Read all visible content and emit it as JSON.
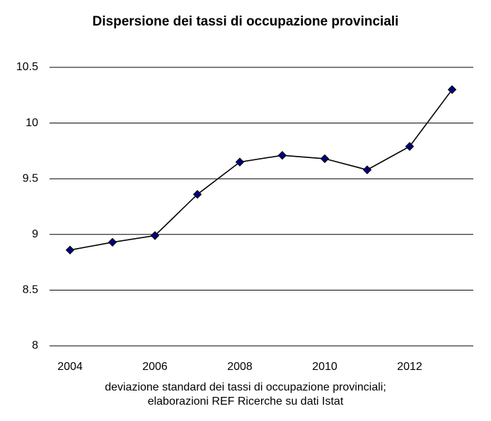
{
  "chart_data": {
    "type": "line",
    "title": "Dispersione dei tassi di occupazione provinciali",
    "xlabel_lines": [
      "deviazione standard dei tassi di occupazione provinciali;",
      "elaborazioni REF Ricerche su dati Istat"
    ],
    "x": [
      2004,
      2005,
      2006,
      2007,
      2008,
      2009,
      2010,
      2011,
      2012,
      2013
    ],
    "series": [
      {
        "values": [
          8.86,
          8.93,
          8.99,
          9.36,
          9.65,
          9.71,
          9.68,
          9.58,
          9.79,
          10.3
        ]
      }
    ],
    "x_tick_labels": [
      "2004",
      "2006",
      "2008",
      "2010",
      "2012"
    ],
    "y_tick_labels": [
      "8",
      "8.5",
      "9",
      "9.5",
      "10",
      "10.5"
    ],
    "ylim": [
      8,
      10.5
    ],
    "grid": "horizontal",
    "marker": "diamond",
    "marker_color": "#000080",
    "line_color": "#000000",
    "grid_color": "#000000"
  }
}
